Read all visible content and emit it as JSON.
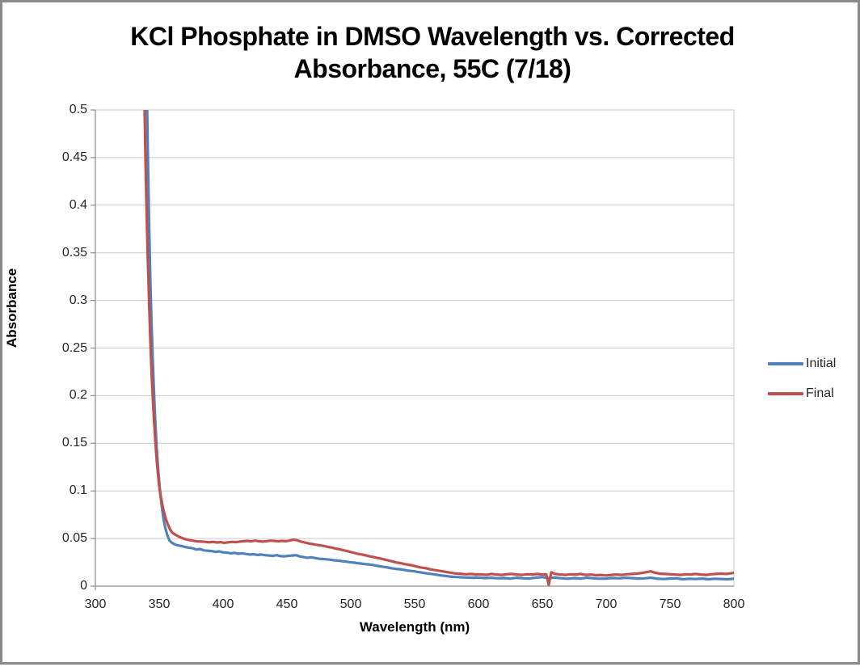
{
  "colors": {
    "series_initial": "#4F81BD",
    "series_final": "#C0504D",
    "axis_line": "#8E8E8E",
    "gridline": "#C9C9C9",
    "frame_border": "#8A8A8A",
    "tick_label": "#262626",
    "title_text": "#000000"
  },
  "chart_data": {
    "type": "line",
    "title": "KCl Phosphate in DMSO Wavelength vs. Corrected Absorbance, 55C (7/18)",
    "title_lines": [
      "KCl Phosphate in DMSO Wavelength vs. Corrected",
      "Absorbance, 55C (7/18)"
    ],
    "xlabel": "Wavelength (nm)",
    "ylabel": "Absorbance",
    "xlim": [
      300,
      800
    ],
    "ylim": [
      0,
      0.5
    ],
    "x_ticks": [
      300,
      350,
      400,
      450,
      500,
      550,
      600,
      650,
      700,
      750,
      800
    ],
    "y_ticks": [
      "0",
      "0.05",
      "0.1",
      "0.15",
      "0.2",
      "0.25",
      "0.3",
      "0.35",
      "0.4",
      "0.45",
      "0.5"
    ],
    "grid": "horizontal",
    "legend_position": "right",
    "series": [
      {
        "name": "Initial",
        "color": "#4F81BD",
        "points": [
          [
            340,
            0.55
          ],
          [
            341,
            0.46
          ],
          [
            342,
            0.385
          ],
          [
            343,
            0.325
          ],
          [
            344,
            0.275
          ],
          [
            345,
            0.235
          ],
          [
            346,
            0.2
          ],
          [
            347,
            0.17
          ],
          [
            348,
            0.146
          ],
          [
            349,
            0.126
          ],
          [
            350,
            0.109
          ],
          [
            351,
            0.095
          ],
          [
            352,
            0.084
          ],
          [
            353,
            0.074
          ],
          [
            354,
            0.066
          ],
          [
            355,
            0.06
          ],
          [
            356,
            0.055
          ],
          [
            357,
            0.051
          ],
          [
            358,
            0.048
          ],
          [
            360,
            0.0455
          ],
          [
            362,
            0.044
          ],
          [
            364,
            0.043
          ],
          [
            366,
            0.0425
          ],
          [
            368,
            0.042
          ],
          [
            370,
            0.0412
          ],
          [
            373,
            0.0405
          ],
          [
            376,
            0.0398
          ],
          [
            379,
            0.0385
          ],
          [
            382,
            0.039
          ],
          [
            385,
            0.0375
          ],
          [
            388,
            0.0372
          ],
          [
            391,
            0.0368
          ],
          [
            394,
            0.036
          ],
          [
            397,
            0.0365
          ],
          [
            400,
            0.0355
          ],
          [
            403,
            0.0352
          ],
          [
            406,
            0.0345
          ],
          [
            409,
            0.035
          ],
          [
            412,
            0.034
          ],
          [
            415,
            0.0345
          ],
          [
            418,
            0.0338
          ],
          [
            421,
            0.0332
          ],
          [
            424,
            0.0335
          ],
          [
            427,
            0.0328
          ],
          [
            430,
            0.0332
          ],
          [
            433,
            0.0325
          ],
          [
            436,
            0.0322
          ],
          [
            439,
            0.0318
          ],
          [
            442,
            0.0325
          ],
          [
            445,
            0.0315
          ],
          [
            448,
            0.0312
          ],
          [
            451,
            0.0318
          ],
          [
            454,
            0.0322
          ],
          [
            457,
            0.0325
          ],
          [
            460,
            0.0312
          ],
          [
            463,
            0.0305
          ],
          [
            466,
            0.0298
          ],
          [
            469,
            0.0302
          ],
          [
            472,
            0.0295
          ],
          [
            475,
            0.0288
          ],
          [
            478,
            0.0285
          ],
          [
            481,
            0.0282
          ],
          [
            484,
            0.0278
          ],
          [
            487,
            0.0272
          ],
          [
            490,
            0.0268
          ],
          [
            493,
            0.0262
          ],
          [
            496,
            0.0258
          ],
          [
            499,
            0.0252
          ],
          [
            502,
            0.0248
          ],
          [
            505,
            0.0242
          ],
          [
            508,
            0.0238
          ],
          [
            511,
            0.0232
          ],
          [
            514,
            0.0228
          ],
          [
            517,
            0.0222
          ],
          [
            520,
            0.0215
          ],
          [
            523,
            0.0208
          ],
          [
            526,
            0.0202
          ],
          [
            529,
            0.0195
          ],
          [
            532,
            0.0188
          ],
          [
            535,
            0.0182
          ],
          [
            538,
            0.0178
          ],
          [
            541,
            0.0172
          ],
          [
            544,
            0.0165
          ],
          [
            547,
            0.016
          ],
          [
            550,
            0.0155
          ],
          [
            553,
            0.0148
          ],
          [
            556,
            0.0142
          ],
          [
            559,
            0.0135
          ],
          [
            562,
            0.013
          ],
          [
            565,
            0.0125
          ],
          [
            568,
            0.0118
          ],
          [
            571,
            0.0112
          ],
          [
            574,
            0.0108
          ],
          [
            577,
            0.0102
          ],
          [
            580,
            0.0098
          ],
          [
            584,
            0.0095
          ],
          [
            588,
            0.0092
          ],
          [
            592,
            0.009
          ],
          [
            596,
            0.0088
          ],
          [
            600,
            0.009
          ],
          [
            605,
            0.0085
          ],
          [
            610,
            0.0088
          ],
          [
            615,
            0.0082
          ],
          [
            620,
            0.0085
          ],
          [
            625,
            0.008
          ],
          [
            630,
            0.0088
          ],
          [
            635,
            0.0082
          ],
          [
            640,
            0.008
          ],
          [
            645,
            0.009
          ],
          [
            650,
            0.0095
          ],
          [
            655,
            0.0085
          ],
          [
            660,
            0.009
          ],
          [
            665,
            0.0082
          ],
          [
            670,
            0.0078
          ],
          [
            675,
            0.0085
          ],
          [
            680,
            0.008
          ],
          [
            685,
            0.0088
          ],
          [
            690,
            0.0082
          ],
          [
            695,
            0.0078
          ],
          [
            700,
            0.008
          ],
          [
            705,
            0.0085
          ],
          [
            710,
            0.0082
          ],
          [
            715,
            0.0088
          ],
          [
            720,
            0.0085
          ],
          [
            725,
            0.008
          ],
          [
            730,
            0.0082
          ],
          [
            735,
            0.0088
          ],
          [
            740,
            0.0078
          ],
          [
            745,
            0.0075
          ],
          [
            750,
            0.008
          ],
          [
            755,
            0.0082
          ],
          [
            760,
            0.0072
          ],
          [
            765,
            0.0078
          ],
          [
            770,
            0.0075
          ],
          [
            775,
            0.008
          ],
          [
            780,
            0.0072
          ],
          [
            785,
            0.0078
          ],
          [
            790,
            0.0075
          ],
          [
            795,
            0.0072
          ],
          [
            800,
            0.0078
          ]
        ]
      },
      {
        "name": "Final",
        "color": "#C0504D",
        "points": [
          [
            338,
            0.55
          ],
          [
            339,
            0.465
          ],
          [
            340,
            0.4
          ],
          [
            341,
            0.345
          ],
          [
            342,
            0.3
          ],
          [
            343,
            0.26
          ],
          [
            344,
            0.225
          ],
          [
            345,
            0.196
          ],
          [
            346,
            0.172
          ],
          [
            347,
            0.151
          ],
          [
            348,
            0.133
          ],
          [
            349,
            0.118
          ],
          [
            350,
            0.105
          ],
          [
            351,
            0.0955
          ],
          [
            352,
            0.0885
          ],
          [
            353,
            0.082
          ],
          [
            354,
            0.0765
          ],
          [
            355,
            0.0715
          ],
          [
            356,
            0.0675
          ],
          [
            357,
            0.064
          ],
          [
            358,
            0.061
          ],
          [
            359,
            0.0585
          ],
          [
            360,
            0.0565
          ],
          [
            362,
            0.0545
          ],
          [
            364,
            0.053
          ],
          [
            366,
            0.0515
          ],
          [
            368,
            0.0505
          ],
          [
            370,
            0.0495
          ],
          [
            372,
            0.0488
          ],
          [
            374,
            0.0482
          ],
          [
            376,
            0.0478
          ],
          [
            378,
            0.0474
          ],
          [
            380,
            0.047
          ],
          [
            383,
            0.0468
          ],
          [
            386,
            0.0465
          ],
          [
            389,
            0.046
          ],
          [
            392,
            0.0465
          ],
          [
            395,
            0.0458
          ],
          [
            398,
            0.0462
          ],
          [
            401,
            0.0455
          ],
          [
            404,
            0.046
          ],
          [
            407,
            0.0465
          ],
          [
            410,
            0.0462
          ],
          [
            413,
            0.0468
          ],
          [
            416,
            0.0472
          ],
          [
            419,
            0.0475
          ],
          [
            422,
            0.047
          ],
          [
            425,
            0.0478
          ],
          [
            428,
            0.0472
          ],
          [
            431,
            0.0468
          ],
          [
            434,
            0.0472
          ],
          [
            437,
            0.0478
          ],
          [
            440,
            0.0475
          ],
          [
            443,
            0.047
          ],
          [
            446,
            0.0475
          ],
          [
            449,
            0.0472
          ],
          [
            452,
            0.0478
          ],
          [
            455,
            0.0488
          ],
          [
            458,
            0.0482
          ],
          [
            461,
            0.0468
          ],
          [
            464,
            0.0458
          ],
          [
            467,
            0.0448
          ],
          [
            470,
            0.0442
          ],
          [
            473,
            0.0435
          ],
          [
            476,
            0.0428
          ],
          [
            479,
            0.0422
          ],
          [
            482,
            0.0412
          ],
          [
            485,
            0.0405
          ],
          [
            488,
            0.0395
          ],
          [
            491,
            0.0388
          ],
          [
            494,
            0.0378
          ],
          [
            497,
            0.0368
          ],
          [
            500,
            0.0358
          ],
          [
            503,
            0.0348
          ],
          [
            506,
            0.0338
          ],
          [
            509,
            0.0332
          ],
          [
            512,
            0.0322
          ],
          [
            515,
            0.0312
          ],
          [
            518,
            0.0305
          ],
          [
            521,
            0.0295
          ],
          [
            524,
            0.0288
          ],
          [
            527,
            0.0278
          ],
          [
            530,
            0.0268
          ],
          [
            533,
            0.0258
          ],
          [
            536,
            0.0248
          ],
          [
            539,
            0.0242
          ],
          [
            542,
            0.0232
          ],
          [
            545,
            0.0225
          ],
          [
            548,
            0.0218
          ],
          [
            551,
            0.0208
          ],
          [
            554,
            0.0198
          ],
          [
            557,
            0.0192
          ],
          [
            560,
            0.0185
          ],
          [
            563,
            0.0175
          ],
          [
            566,
            0.0168
          ],
          [
            569,
            0.0162
          ],
          [
            572,
            0.0155
          ],
          [
            575,
            0.0148
          ],
          [
            578,
            0.0142
          ],
          [
            581,
            0.0135
          ],
          [
            584,
            0.0132
          ],
          [
            587,
            0.0128
          ],
          [
            590,
            0.0125
          ],
          [
            594,
            0.0128
          ],
          [
            598,
            0.0122
          ],
          [
            602,
            0.0125
          ],
          [
            606,
            0.0118
          ],
          [
            610,
            0.0128
          ],
          [
            614,
            0.0122
          ],
          [
            618,
            0.0118
          ],
          [
            622,
            0.0125
          ],
          [
            626,
            0.0128
          ],
          [
            630,
            0.0122
          ],
          [
            634,
            0.0118
          ],
          [
            638,
            0.0125
          ],
          [
            642,
            0.0122
          ],
          [
            646,
            0.0128
          ],
          [
            650,
            0.0122
          ],
          [
            653,
            0.0125
          ],
          [
            655,
            0.0015
          ],
          [
            657,
            0.0145
          ],
          [
            660,
            0.0128
          ],
          [
            664,
            0.0122
          ],
          [
            668,
            0.0118
          ],
          [
            672,
            0.0125
          ],
          [
            676,
            0.0122
          ],
          [
            680,
            0.0128
          ],
          [
            684,
            0.0118
          ],
          [
            688,
            0.0122
          ],
          [
            692,
            0.0115
          ],
          [
            696,
            0.0118
          ],
          [
            700,
            0.0112
          ],
          [
            704,
            0.0118
          ],
          [
            708,
            0.0122
          ],
          [
            712,
            0.0118
          ],
          [
            716,
            0.0125
          ],
          [
            720,
            0.0128
          ],
          [
            724,
            0.0132
          ],
          [
            728,
            0.0138
          ],
          [
            732,
            0.0148
          ],
          [
            735,
            0.0155
          ],
          [
            738,
            0.0142
          ],
          [
            742,
            0.0132
          ],
          [
            746,
            0.0128
          ],
          [
            750,
            0.0125
          ],
          [
            754,
            0.0122
          ],
          [
            758,
            0.0118
          ],
          [
            762,
            0.0125
          ],
          [
            766,
            0.0122
          ],
          [
            770,
            0.0128
          ],
          [
            774,
            0.0122
          ],
          [
            778,
            0.0118
          ],
          [
            782,
            0.0125
          ],
          [
            786,
            0.0128
          ],
          [
            790,
            0.0132
          ],
          [
            794,
            0.0128
          ],
          [
            798,
            0.0135
          ],
          [
            800,
            0.014
          ]
        ]
      }
    ],
    "legend": [
      {
        "label": "Initial",
        "color": "#4F81BD"
      },
      {
        "label": "Final",
        "color": "#C0504D"
      }
    ]
  }
}
